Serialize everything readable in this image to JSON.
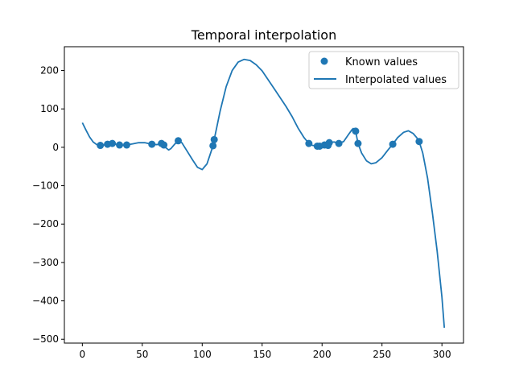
{
  "chart_data": {
    "type": "scatter+line",
    "title": "Temporal interpolation",
    "xlabel": "",
    "ylabel": "",
    "xlim": [
      -15,
      318
    ],
    "ylim": [
      -510,
      262
    ],
    "xticks": [
      0,
      50,
      100,
      150,
      200,
      250,
      300
    ],
    "yticks": [
      -500,
      -400,
      -300,
      -200,
      -100,
      0,
      100,
      200
    ],
    "xtick_labels": [
      "0",
      "50",
      "100",
      "150",
      "200",
      "250",
      "300"
    ],
    "ytick_labels": [
      "−500",
      "−400",
      "−300",
      "−200",
      "−100",
      "0",
      "100",
      "200"
    ],
    "grid": false,
    "legend_position": "top-right",
    "colors": {
      "series": "#1f77b4"
    },
    "series": [
      {
        "name": "Known values",
        "type": "scatter",
        "points": [
          [
            15,
            5
          ],
          [
            21,
            8
          ],
          [
            25,
            10
          ],
          [
            31,
            6
          ],
          [
            37,
            6
          ],
          [
            58,
            8
          ],
          [
            66,
            10
          ],
          [
            68,
            6
          ],
          [
            80,
            17
          ],
          [
            109,
            4
          ],
          [
            110,
            20
          ],
          [
            189,
            10
          ],
          [
            196,
            3
          ],
          [
            198,
            3
          ],
          [
            202,
            6
          ],
          [
            205,
            5
          ],
          [
            206,
            12
          ],
          [
            214,
            10
          ],
          [
            228,
            42
          ],
          [
            230,
            10
          ],
          [
            259,
            8
          ],
          [
            281,
            15
          ]
        ]
      },
      {
        "name": "Interpolated values",
        "type": "line",
        "points": [
          [
            0,
            64
          ],
          [
            3,
            45
          ],
          [
            6,
            27
          ],
          [
            9,
            14
          ],
          [
            12,
            7
          ],
          [
            15,
            5
          ],
          [
            18,
            6
          ],
          [
            21,
            8
          ],
          [
            25,
            10
          ],
          [
            28,
            8
          ],
          [
            31,
            6
          ],
          [
            34,
            5
          ],
          [
            37,
            6
          ],
          [
            42,
            9
          ],
          [
            47,
            12
          ],
          [
            52,
            12
          ],
          [
            58,
            8
          ],
          [
            62,
            7
          ],
          [
            64,
            8
          ],
          [
            66,
            10
          ],
          [
            68,
            6
          ],
          [
            70,
            -2
          ],
          [
            72,
            -7
          ],
          [
            74,
            -3
          ],
          [
            77,
            8
          ],
          [
            80,
            17
          ],
          [
            83,
            12
          ],
          [
            87,
            -8
          ],
          [
            92,
            -33
          ],
          [
            96,
            -52
          ],
          [
            100,
            -58
          ],
          [
            104,
            -43
          ],
          [
            107,
            -15
          ],
          [
            109,
            4
          ],
          [
            110,
            20
          ],
          [
            112,
            50
          ],
          [
            115,
            95
          ],
          [
            120,
            158
          ],
          [
            125,
            200
          ],
          [
            130,
            222
          ],
          [
            135,
            229
          ],
          [
            140,
            226
          ],
          [
            145,
            215
          ],
          [
            150,
            199
          ],
          [
            160,
            153
          ],
          [
            170,
            106
          ],
          [
            175,
            80
          ],
          [
            180,
            50
          ],
          [
            185,
            25
          ],
          [
            189,
            10
          ],
          [
            192,
            5
          ],
          [
            196,
            3
          ],
          [
            198,
            3
          ],
          [
            202,
            6
          ],
          [
            205,
            5
          ],
          [
            206,
            12
          ],
          [
            210,
            14
          ],
          [
            214,
            10
          ],
          [
            218,
            15
          ],
          [
            222,
            33
          ],
          [
            225,
            46
          ],
          [
            226,
            49
          ],
          [
            228,
            42
          ],
          [
            230,
            10
          ],
          [
            233,
            -15
          ],
          [
            237,
            -35
          ],
          [
            241,
            -43
          ],
          [
            245,
            -40
          ],
          [
            250,
            -27
          ],
          [
            255,
            -7
          ],
          [
            259,
            8
          ],
          [
            263,
            25
          ],
          [
            268,
            39
          ],
          [
            272,
            43
          ],
          [
            276,
            36
          ],
          [
            279,
            25
          ],
          [
            281,
            15
          ],
          [
            284,
            -15
          ],
          [
            288,
            -80
          ],
          [
            292,
            -170
          ],
          [
            296,
            -270
          ],
          [
            300,
            -390
          ],
          [
            302,
            -470
          ]
        ]
      }
    ]
  }
}
